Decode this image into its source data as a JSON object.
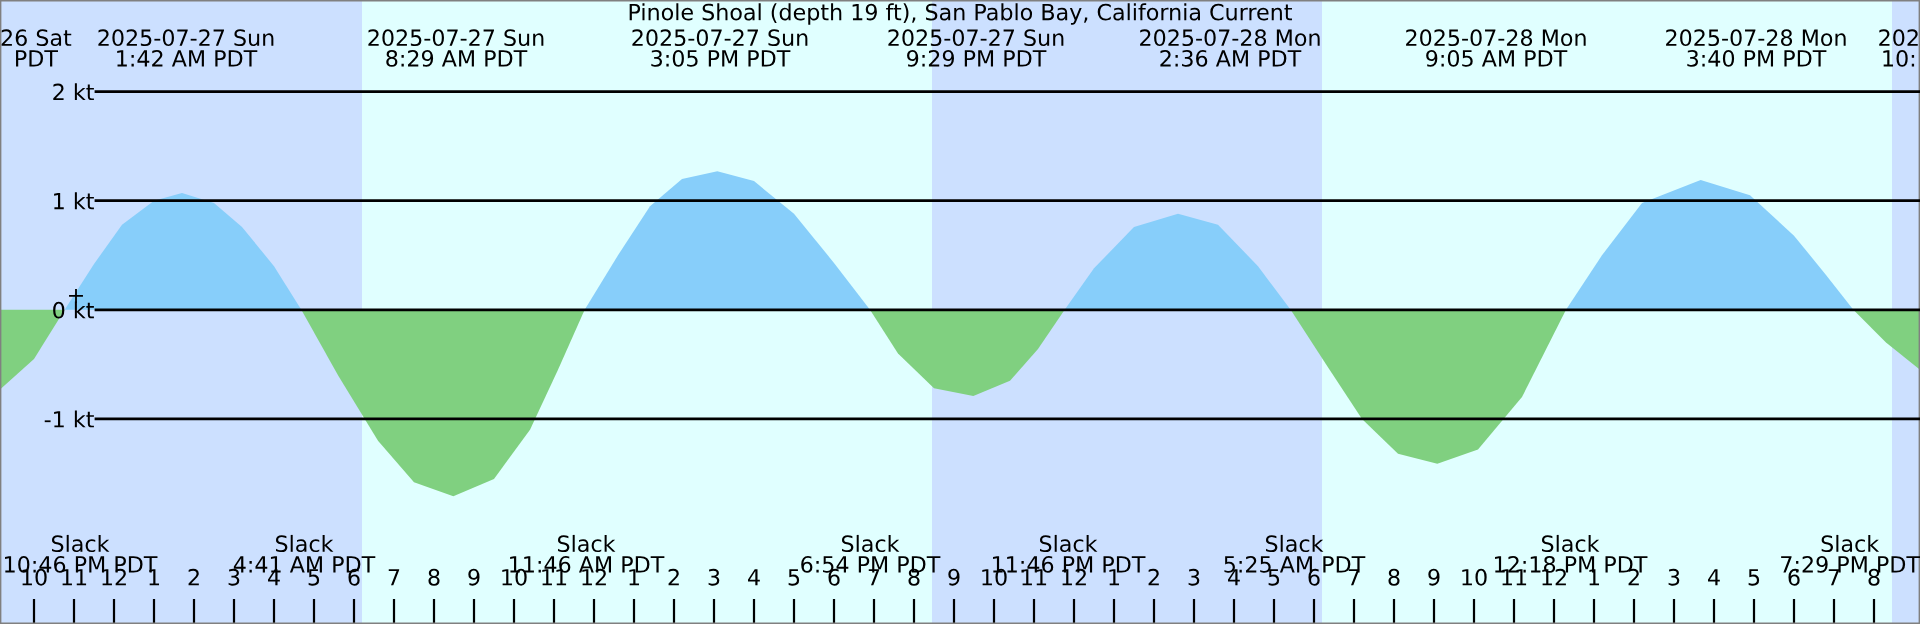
{
  "chart_data": {
    "type": "area",
    "title": "Pinole Shoal (depth 19 ft), San Pablo Bay, California Current",
    "xlim": [
      "2025-07-26T21:09",
      "2025-07-28T21:09"
    ],
    "ylim": [
      -2.88,
      2.84
    ],
    "xticks": [
      {
        "value": "2025-07-26T22:00",
        "label": "10"
      },
      {
        "value": "2025-07-26T23:00",
        "label": "11"
      },
      {
        "value": "2025-07-27T00:00",
        "label": "12"
      },
      {
        "value": "2025-07-27T01:00",
        "label": "1"
      },
      {
        "value": "2025-07-27T02:00",
        "label": "2"
      },
      {
        "value": "2025-07-27T03:00",
        "label": "3"
      },
      {
        "value": "2025-07-27T04:00",
        "label": "4"
      },
      {
        "value": "2025-07-27T05:00",
        "label": "5"
      },
      {
        "value": "2025-07-27T06:00",
        "label": "6"
      },
      {
        "value": "2025-07-27T07:00",
        "label": "7"
      },
      {
        "value": "2025-07-27T08:00",
        "label": "8"
      },
      {
        "value": "2025-07-27T09:00",
        "label": "9"
      },
      {
        "value": "2025-07-27T10:00",
        "label": "10"
      },
      {
        "value": "2025-07-27T11:00",
        "label": "11"
      },
      {
        "value": "2025-07-27T12:00",
        "label": "12"
      },
      {
        "value": "2025-07-27T13:00",
        "label": "1"
      },
      {
        "value": "2025-07-27T14:00",
        "label": "2"
      },
      {
        "value": "2025-07-27T15:00",
        "label": "3"
      },
      {
        "value": "2025-07-27T16:00",
        "label": "4"
      },
      {
        "value": "2025-07-27T17:00",
        "label": "5"
      },
      {
        "value": "2025-07-27T18:00",
        "label": "6"
      },
      {
        "value": "2025-07-27T19:00",
        "label": "7"
      },
      {
        "value": "2025-07-27T20:00",
        "label": "8"
      },
      {
        "value": "2025-07-27T21:00",
        "label": "9"
      },
      {
        "value": "2025-07-27T22:00",
        "label": "10"
      },
      {
        "value": "2025-07-27T23:00",
        "label": "11"
      },
      {
        "value": "2025-07-28T00:00",
        "label": "12"
      },
      {
        "value": "2025-07-28T01:00",
        "label": "1"
      },
      {
        "value": "2025-07-28T02:00",
        "label": "2"
      },
      {
        "value": "2025-07-28T03:00",
        "label": "3"
      },
      {
        "value": "2025-07-28T04:00",
        "label": "4"
      },
      {
        "value": "2025-07-28T05:00",
        "label": "5"
      },
      {
        "value": "2025-07-28T06:00",
        "label": "6"
      },
      {
        "value": "2025-07-28T07:00",
        "label": "7"
      },
      {
        "value": "2025-07-28T08:00",
        "label": "8"
      },
      {
        "value": "2025-07-28T09:00",
        "label": "9"
      },
      {
        "value": "2025-07-28T10:00",
        "label": "10"
      },
      {
        "value": "2025-07-28T11:00",
        "label": "11"
      },
      {
        "value": "2025-07-28T12:00",
        "label": "12"
      },
      {
        "value": "2025-07-28T13:00",
        "label": "1"
      },
      {
        "value": "2025-07-28T14:00",
        "label": "2"
      },
      {
        "value": "2025-07-28T15:00",
        "label": "3"
      },
      {
        "value": "2025-07-28T16:00",
        "label": "4"
      },
      {
        "value": "2025-07-28T17:00",
        "label": "5"
      },
      {
        "value": "2025-07-28T18:00",
        "label": "6"
      },
      {
        "value": "2025-07-28T19:00",
        "label": "7"
      },
      {
        "value": "2025-07-28T20:00",
        "label": "8"
      }
    ],
    "yticks": [
      {
        "value": 2,
        "label": "2 kt"
      },
      {
        "value": 1,
        "label": "1 kt"
      },
      {
        "value": 0,
        "label": "0 kt"
      },
      {
        "value": -1,
        "label": "-1 kt"
      }
    ],
    "grid": "y",
    "bands": [
      {
        "axis": "x",
        "from": "2025-07-26T21:09",
        "to": "2025-07-27T06:12",
        "color": "#cce0ff"
      },
      {
        "axis": "x",
        "from": "2025-07-27T06:12",
        "to": "2025-07-27T20:27",
        "color": "#e0ffff"
      },
      {
        "axis": "x",
        "from": "2025-07-27T20:27",
        "to": "2025-07-28T06:12",
        "color": "#cce0ff"
      },
      {
        "axis": "x",
        "from": "2025-07-28T06:12",
        "to": "2025-07-28T20:27",
        "color": "#e0ffff"
      },
      {
        "axis": "x",
        "from": "2025-07-28T20:27",
        "to": "2025-07-28T21:09",
        "color": "#cce0ff"
      }
    ],
    "series": [
      {
        "color": "#87cefa",
        "x": [
          "2025-07-26T22:46",
          "2025-07-26T23:30",
          "2025-07-27T00:12",
          "2025-07-27T01:00",
          "2025-07-27T01:42",
          "2025-07-27T02:30",
          "2025-07-27T03:12",
          "2025-07-27T04:00",
          "2025-07-27T04:41",
          "2025-07-27T08:00",
          "2025-07-27T11:46",
          "2025-07-27T12:36",
          "2025-07-27T13:24",
          "2025-07-27T14:12",
          "2025-07-27T15:05",
          "2025-07-27T16:00",
          "2025-07-27T17:00",
          "2025-07-27T18:00",
          "2025-07-27T18:54",
          "2025-07-27T21:00",
          "2025-07-27T23:46",
          "2025-07-28T00:30",
          "2025-07-28T01:30",
          "2025-07-28T02:36",
          "2025-07-28T03:36",
          "2025-07-28T04:36",
          "2025-07-28T05:25",
          "2025-07-28T09:00",
          "2025-07-28T12:18",
          "2025-07-28T13:12",
          "2025-07-28T14:12",
          "2025-07-28T15:40",
          "2025-07-28T16:54",
          "2025-07-28T18:00",
          "2025-07-28T18:48",
          "2025-07-28T19:29"
        ],
        "values": [
          0,
          0.42,
          0.78,
          1.0,
          1.07,
          0.98,
          0.76,
          0.4,
          0,
          null,
          0,
          0.5,
          0.95,
          1.2,
          1.27,
          1.18,
          0.88,
          0.43,
          0,
          null,
          0,
          0.38,
          0.76,
          0.88,
          0.78,
          0.4,
          0,
          null,
          0,
          0.5,
          0.98,
          1.19,
          1.05,
          0.68,
          0.32,
          0
        ]
      },
      {
        "color": "#80d080",
        "x": [
          "2025-07-26T21:09",
          "2025-07-26T22:00",
          "2025-07-26T22:46",
          "2025-07-27T01:42",
          "2025-07-27T04:41",
          "2025-07-27T05:36",
          "2025-07-27T06:36",
          "2025-07-27T07:30",
          "2025-07-27T08:29",
          "2025-07-27T09:30",
          "2025-07-27T10:24",
          "2025-07-27T11:06",
          "2025-07-27T11:46",
          "2025-07-27T15:00",
          "2025-07-27T18:54",
          "2025-07-27T19:36",
          "2025-07-27T20:30",
          "2025-07-27T21:29",
          "2025-07-27T22:24",
          "2025-07-27T23:06",
          "2025-07-27T23:46",
          "2025-07-28T02:36",
          "2025-07-28T05:25",
          "2025-07-28T06:18",
          "2025-07-28T07:12",
          "2025-07-28T08:06",
          "2025-07-28T09:05",
          "2025-07-28T10:06",
          "2025-07-28T11:12",
          "2025-07-28T12:18",
          "2025-07-28T16:00",
          "2025-07-28T19:29",
          "2025-07-28T20:18",
          "2025-07-28T21:09"
        ],
        "values": [
          -0.73,
          -0.45,
          0,
          null,
          0,
          -0.6,
          -1.2,
          -1.58,
          -1.71,
          -1.55,
          -1.1,
          -0.55,
          0,
          null,
          0,
          -0.4,
          -0.72,
          -0.79,
          -0.65,
          -0.36,
          0,
          null,
          0,
          -0.5,
          -1.0,
          -1.32,
          -1.41,
          -1.28,
          -0.8,
          0,
          null,
          0,
          -0.3,
          -0.55
        ]
      }
    ],
    "annotations": [
      "26 Sat\nPDT",
      "2025-07-27 Sun\n1:42 AM PDT",
      "2025-07-27 Sun\n8:29 AM PDT",
      "2025-07-27 Sun\n3:05 PM PDT",
      "2025-07-27 Sun\n9:29 PM PDT",
      "2025-07-28 Mon\n2:36 AM PDT",
      "2025-07-28 Mon\n9:05 AM PDT",
      "2025-07-28 Mon\n3:40 PM PDT",
      "202\n10:",
      "Slack\n10:46 PM PDT",
      "Slack\n4:41 AM PDT",
      "Slack\n11:46 AM PDT",
      "Slack\n6:54 PM PDT",
      "Slack\n11:46 PM PDT",
      "Slack\n5:25 AM PDT",
      "Slack\n12:18 PM PDT",
      "Slack\n7:29 PM PDT",
      {
        "text": "+",
        "x": "2025-07-26T23:03",
        "y": 0.12
      }
    ]
  }
}
